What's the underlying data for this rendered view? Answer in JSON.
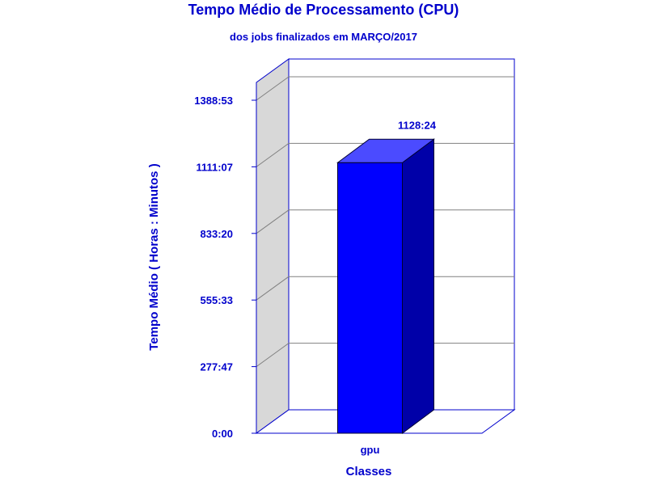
{
  "chart_data": {
    "type": "bar",
    "title": "Tempo Médio de Processamento (CPU)",
    "subtitle": "dos jobs finalizados em MARÇO/2017",
    "xlabel": "Classes",
    "ylabel": "Tempo Médio ( Horas : Minutos )",
    "categories": [
      "gpu"
    ],
    "values": [
      1128.4
    ],
    "data_labels": [
      "1128:24"
    ],
    "yticks": [
      {
        "value": 0,
        "label": "0:00"
      },
      {
        "value": 277.78,
        "label": "277:47"
      },
      {
        "value": 555.55,
        "label": "555:33"
      },
      {
        "value": 833.33,
        "label": "833:20"
      },
      {
        "value": 1111.12,
        "label": "1111:07"
      },
      {
        "value": 1388.88,
        "label": "1388:53"
      }
    ],
    "ylim": [
      0,
      1388.88
    ],
    "grid": true,
    "legend": "none",
    "colors": {
      "text": "#0000cc",
      "bar_front": "#0000ff",
      "bar_top": "#4b4bff",
      "bar_side": "#0000a8",
      "wall": "#d8d8d8",
      "frame": "#0000cc",
      "grid": "#808080"
    }
  }
}
